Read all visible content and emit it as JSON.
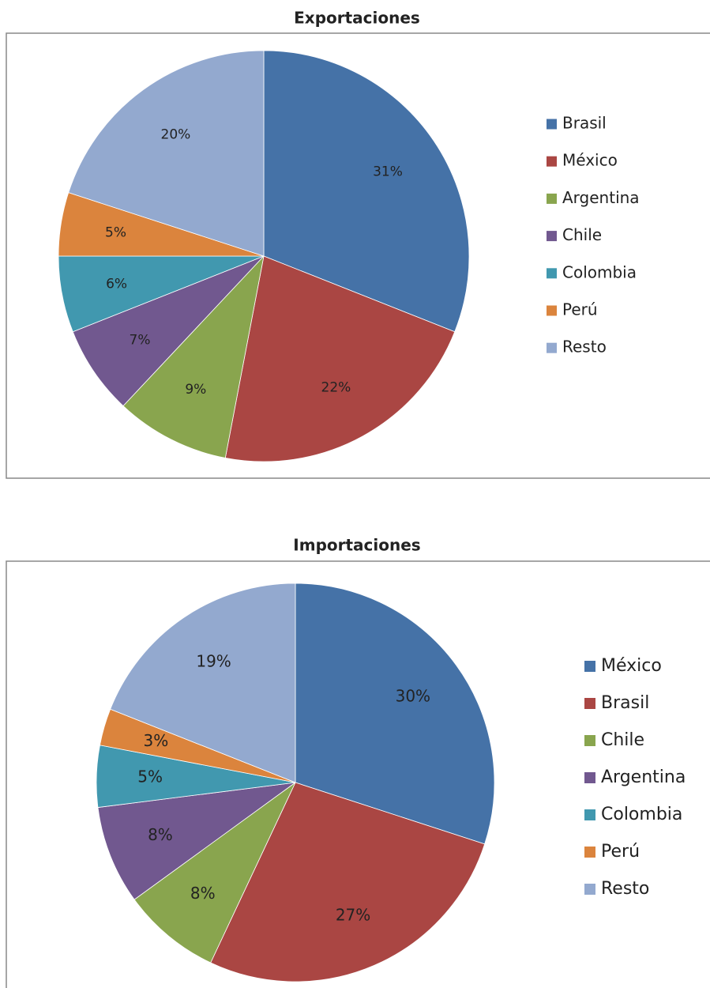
{
  "chart_data": [
    {
      "type": "pie",
      "title": "Exportaciones",
      "categories": [
        "Brasil",
        "México",
        "Argentina",
        "Chile",
        "Colombia",
        "Perú",
        "Resto"
      ],
      "values": [
        31,
        22,
        9,
        7,
        6,
        5,
        20
      ],
      "value_labels": [
        "31%",
        "22%",
        "9%",
        "7%",
        "6%",
        "5%",
        "20%"
      ],
      "colors": [
        "#4572a7",
        "#aa4643",
        "#89a54e",
        "#71588f",
        "#4198af",
        "#db843d",
        "#93a9cf"
      ],
      "legend": "right"
    },
    {
      "type": "pie",
      "title": "Importaciones",
      "categories": [
        "México",
        "Brasil",
        "Chile",
        "Argentina",
        "Colombia",
        "Perú",
        "Resto"
      ],
      "values": [
        30,
        27,
        8,
        8,
        5,
        3,
        19
      ],
      "value_labels": [
        "30%",
        "27%",
        "8%",
        "8%",
        "5%",
        "3%",
        "19%"
      ],
      "colors": [
        "#4572a7",
        "#aa4643",
        "#89a54e",
        "#71588f",
        "#4198af",
        "#db843d",
        "#93a9cf"
      ],
      "legend": "right"
    }
  ]
}
